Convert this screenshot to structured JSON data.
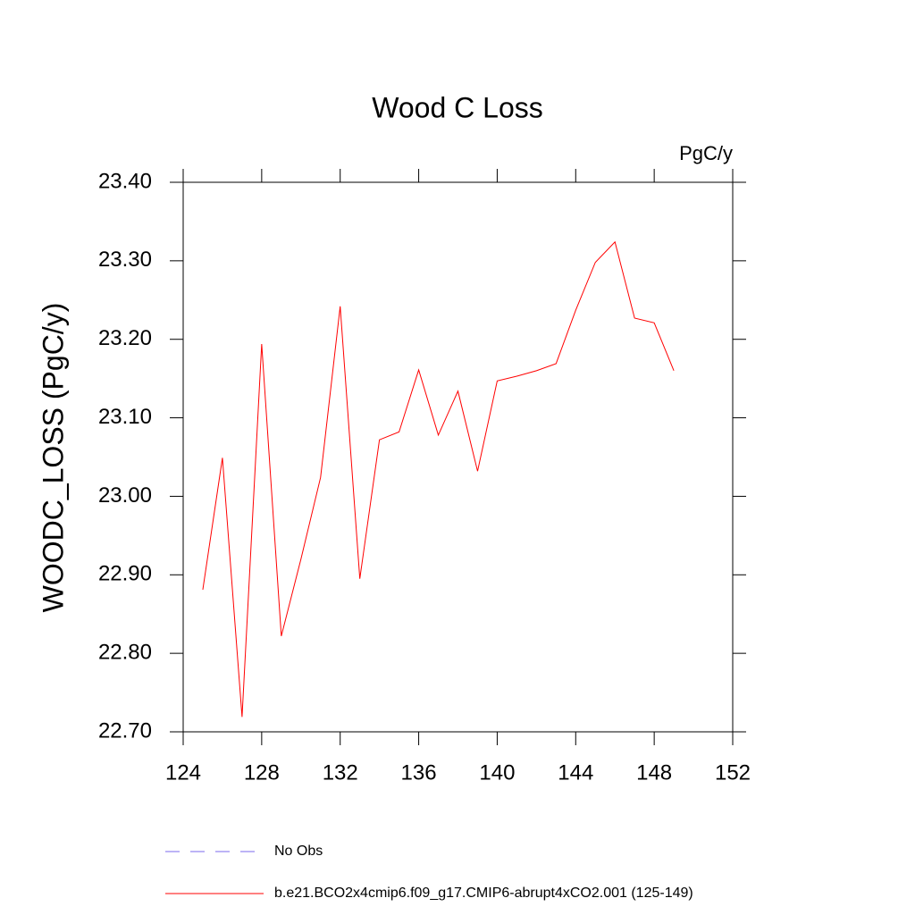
{
  "chart_data": {
    "type": "line",
    "title": "Wood C Loss",
    "units": "PgC/y",
    "ylabel": "WOODC_LOSS  (PgC/y)",
    "x": [
      125,
      126,
      127,
      128,
      129,
      130,
      131,
      132,
      133,
      134,
      135,
      136,
      137,
      138,
      139,
      140,
      141,
      142,
      143,
      144,
      145,
      146,
      147,
      148,
      149
    ],
    "series": [
      {
        "name": "b.e21.BCO2x4cmip6.f09_g17.CMIP6-abrupt4xCO2.001 (125-149)",
        "color": "#ff0000",
        "values": [
          22.881,
          23.049,
          22.719,
          23.194,
          22.822,
          22.92,
          23.024,
          23.242,
          22.895,
          23.072,
          23.082,
          23.161,
          23.078,
          23.134,
          23.032,
          23.147,
          23.153,
          23.16,
          23.169,
          23.237,
          23.298,
          23.324,
          23.227,
          23.221,
          23.16
        ]
      }
    ],
    "obs_legend": {
      "name": "No Obs",
      "color": "#7b68ee"
    },
    "xlim": [
      124,
      152
    ],
    "xticks": [
      124,
      128,
      132,
      136,
      140,
      144,
      148,
      152
    ],
    "ylim": [
      22.7,
      23.4
    ],
    "yticks": [
      {
        "value": 22.7,
        "label": "22.70"
      },
      {
        "value": 22.8,
        "label": "22.80"
      },
      {
        "value": 22.9,
        "label": "22.90"
      },
      {
        "value": 23.0,
        "label": "23.00"
      },
      {
        "value": 23.1,
        "label": "23.10"
      },
      {
        "value": 23.2,
        "label": "23.20"
      },
      {
        "value": 23.3,
        "label": "23.30"
      },
      {
        "value": 23.4,
        "label": "23.40"
      }
    ]
  }
}
